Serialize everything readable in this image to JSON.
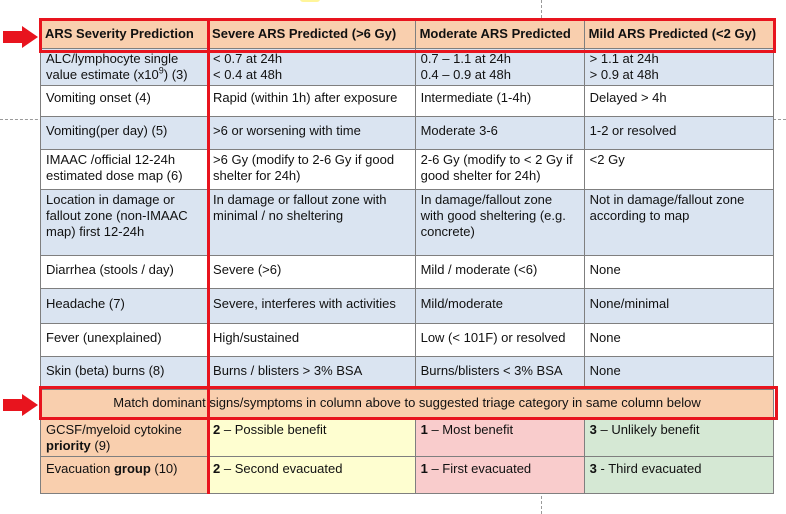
{
  "header": {
    "row_label": "ARS Severity Prediction",
    "severe": "Severe ARS Predicted (>6 Gy)",
    "moderate": "Moderate ARS Predicted",
    "mild": "Mild ARS Predicted (<2 Gy)"
  },
  "rows": [
    {
      "label_line1": "ALC/lymphocyte single",
      "label_line2_pre": "value estimate (x10",
      "label_sup": "9",
      "label_line2_post": ") (3)",
      "severe_line1": "< 0.7 at 24h",
      "severe_line2": "< 0.4 at 48h",
      "moderate_line1": "0.7 – 1.1 at 24h",
      "moderate_line2": "0.4 – 0.9 at 48h",
      "mild_line1": "> 1.1 at 24h",
      "mild_line2": "> 0.9 at 48h"
    },
    {
      "label": "Vomiting onset (4)",
      "severe": "Rapid (within 1h) after exposure",
      "moderate": "Intermediate (1-4h)",
      "mild": "Delayed > 4h"
    },
    {
      "label": "Vomiting(per day) (5)",
      "severe": ">6 or worsening with time",
      "moderate": "Moderate 3-6",
      "mild": "1-2 or resolved"
    },
    {
      "label": "IMAAC /official 12-24h estimated dose map (6)",
      "severe": ">6 Gy (modify to 2-6 Gy if good shelter for 24h)",
      "moderate": "2-6 Gy (modify to < 2 Gy if good shelter for 24h)",
      "mild": "<2 Gy"
    },
    {
      "label": "Location in damage or fallout zone (non-IMAAC map) first 12-24h",
      "severe": "In damage or fallout zone with minimal / no sheltering",
      "moderate": "In damage/fallout zone with good sheltering (e.g. concrete)",
      "mild": "Not in damage/fallout zone according to map"
    },
    {
      "label": "Diarrhea (stools / day)",
      "severe": "Severe (>6)",
      "moderate": "Mild / moderate (<6)",
      "mild": "None"
    },
    {
      "label": "Headache (7)",
      "severe": "Severe, interferes with activities",
      "moderate": "Mild/moderate",
      "mild": "None/minimal"
    },
    {
      "label": "Fever (unexplained)",
      "severe": "High/sustained",
      "moderate": "Low (< 101F) or resolved",
      "mild": "None"
    },
    {
      "label": "Skin (beta) burns (8)",
      "severe": "Burns / blisters > 3% BSA",
      "moderate": "Burns/blisters < 3% BSA",
      "mild": "None"
    }
  ],
  "match_note": "Match dominant signs/symptoms in column above to suggested triage category in same column below",
  "triage": [
    {
      "label_line1": "GCSF/myeloid cytokine",
      "label_bold": "priority",
      "label_rest": " (9)",
      "severe_num": "2",
      "severe_text": " – Possible benefit",
      "moderate_num": "1",
      "moderate_text": " – Most benefit",
      "mild_num": "3",
      "mild_text": " – Unlikely benefit"
    },
    {
      "label_pre": "Evacuation ",
      "label_bold": "group",
      "label_rest": " (10)",
      "severe_num": "2",
      "severe_text": " – Second evacuated",
      "moderate_num": "1",
      "moderate_text": " – First evacuated",
      "mild_num": "3",
      "mild_text": " - Third evacuated"
    }
  ],
  "colors": {
    "header_bg": "#f9cfae",
    "row_blue": "#dae4f1",
    "severe_bg": "#fefed0",
    "moderate_bg": "#f9cccc",
    "mild_bg": "#d5e8d4",
    "highlight_red": "#e8141e"
  },
  "icons": [
    "right-arrow-icon",
    "right-arrow-icon"
  ]
}
